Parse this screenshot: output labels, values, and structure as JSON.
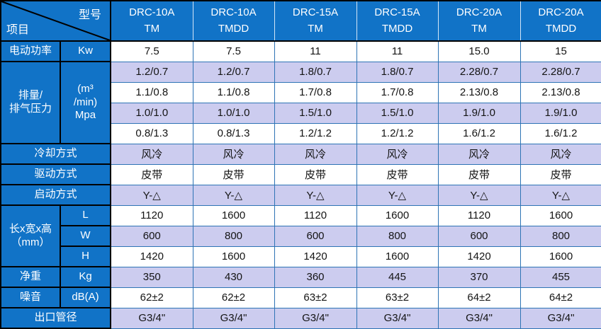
{
  "colors": {
    "header_blue": "#1173C7",
    "row_shade": "#CCCCEF",
    "grid_blue": "#2E74B5",
    "border_black": "#000000"
  },
  "header": {
    "corner": {
      "field_label": "型号",
      "item_label": "项目"
    },
    "models": [
      {
        "name": "DRC-10A",
        "variant": "TM"
      },
      {
        "name": "DRC-10A",
        "variant": "TMDD"
      },
      {
        "name": "DRC-15A",
        "variant": "TM"
      },
      {
        "name": "DRC-15A",
        "variant": "TMDD"
      },
      {
        "name": "DRC-20A",
        "variant": "TM"
      },
      {
        "name": "DRC-20A",
        "variant": "TMDD"
      }
    ]
  },
  "spec_rows": [
    {
      "id": "motor-power",
      "label": "电动功率",
      "unit": "Kw",
      "values": [
        "7.5",
        "7.5",
        "11",
        "11",
        "15.0",
        "15"
      ]
    },
    {
      "id": "displacement",
      "label": "排量/\n排气压力",
      "unit": "(m³\n/min)\nMpa",
      "sub_rows": [
        {
          "values": [
            "1.2/0.7",
            "1.2/0.7",
            "1.8/0.7",
            "1.8/0.7",
            "2.28/0.7",
            "2.28/0.7"
          ]
        },
        {
          "values": [
            "1.1/0.8",
            "1.1/0.8",
            "1.7/0.8",
            "1.7/0.8",
            "2.13/0.8",
            "2.13/0.8"
          ]
        },
        {
          "values": [
            "1.0/1.0",
            "1.0/1.0",
            "1.5/1.0",
            "1.5/1.0",
            "1.9/1.0",
            "1.9/1.0"
          ]
        },
        {
          "values": [
            "0.8/1.3",
            "0.8/1.3",
            "1.2/1.2",
            "1.2/1.2",
            "1.6/1.2",
            "1.6/1.2"
          ]
        }
      ]
    },
    {
      "id": "cooling-method",
      "label": "冷却方式",
      "values": [
        "风冷",
        "风冷",
        "风冷",
        "风冷",
        "风冷",
        "风冷"
      ]
    },
    {
      "id": "drive-method",
      "label": "驱动方式",
      "values": [
        "皮带",
        "皮带",
        "皮带",
        "皮带",
        "皮带",
        "皮带"
      ]
    },
    {
      "id": "start-method",
      "label": "启动方式",
      "values": [
        "Y-△",
        "Y-△",
        "Y-△",
        "Y-△",
        "Y-△",
        "Y-△"
      ]
    },
    {
      "id": "dimensions",
      "label": "长x宽x高\n（mm）",
      "sub_rows": [
        {
          "unit": "L",
          "values": [
            "1120",
            "1600",
            "1120",
            "1600",
            "1120",
            "1600"
          ]
        },
        {
          "unit": "W",
          "values": [
            "600",
            "800",
            "600",
            "800",
            "600",
            "800"
          ]
        },
        {
          "unit": "H",
          "values": [
            "1420",
            "1600",
            "1420",
            "1600",
            "1420",
            "1600"
          ]
        }
      ]
    },
    {
      "id": "net-weight",
      "label": "净重",
      "unit": "Kg",
      "values": [
        "350",
        "430",
        "360",
        "445",
        "370",
        "455"
      ]
    },
    {
      "id": "noise",
      "label": "噪音",
      "unit": "dB(A)",
      "values": [
        "62±2",
        "62±2",
        "63±2",
        "63±2",
        "64±2",
        "64±2"
      ]
    },
    {
      "id": "outlet-diameter",
      "label": "出口管径",
      "values": [
        "G3/4\"",
        "G3/4\"",
        "G3/4\"",
        "G3/4\"",
        "G3/4\"",
        "G3/4\""
      ]
    }
  ]
}
